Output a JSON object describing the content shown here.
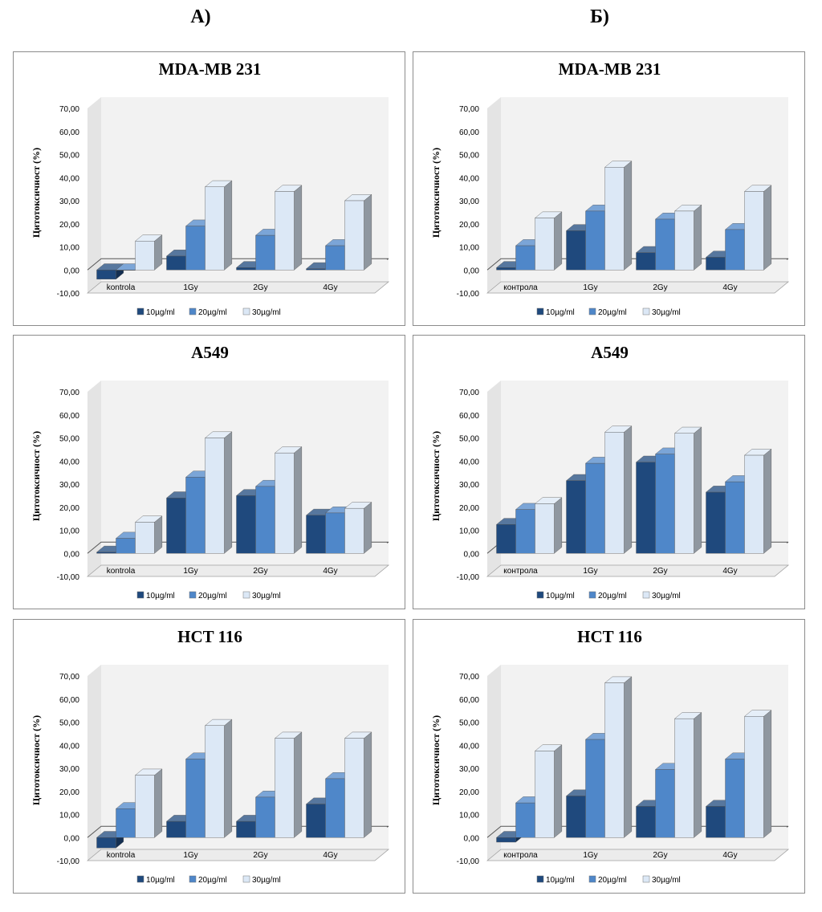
{
  "headings": {
    "left": "А)",
    "right": "Б)"
  },
  "colors": {
    "s10": "#1f497d",
    "s20": "#4f87c9",
    "s30": "#dce8f6",
    "wall": "#f2f2f2",
    "grid": "#555555",
    "edge": "#8a8a8a"
  },
  "chart_data": [
    {
      "type": "bar",
      "title": "MDA-MB 231",
      "ylabel": "Цитотоксичност (%)",
      "xlabel": "",
      "ylim": [
        -10,
        70
      ],
      "yticks": [
        "-10,00",
        "0,00",
        "10,00",
        "20,00",
        "30,00",
        "40,00",
        "50,00",
        "60,00",
        "70,00"
      ],
      "categories": [
        "kontrola",
        "1Gy",
        "2Gy",
        "4Gy"
      ],
      "series": [
        {
          "name": "10µg/ml",
          "values": [
            -4,
            6,
            1,
            0.5
          ]
        },
        {
          "name": "20µg/ml",
          "values": [
            0,
            19,
            15,
            10.5
          ]
        },
        {
          "name": "30µg/ml",
          "values": [
            12.5,
            36,
            34,
            30
          ]
        }
      ],
      "legend": "bottom"
    },
    {
      "type": "bar",
      "title": "MDA-MB 231",
      "ylabel": "Цитотоксичност (%)",
      "xlabel": "",
      "ylim": [
        -10,
        70
      ],
      "yticks": [
        "-10,00",
        "0,00",
        "10,00",
        "20,00",
        "30,00",
        "40,00",
        "50,00",
        "60,00",
        "70,00"
      ],
      "categories": [
        "контрола",
        "1Gy",
        "2Gy",
        "4Gy"
      ],
      "series": [
        {
          "name": "10µg/ml",
          "values": [
            1,
            17,
            7.5,
            5.5
          ]
        },
        {
          "name": "20µg/ml",
          "values": [
            10.5,
            25.5,
            22,
            17.5
          ]
        },
        {
          "name": "30µg/ml",
          "values": [
            22.5,
            44.5,
            25.5,
            34
          ]
        }
      ],
      "legend": "bottom"
    },
    {
      "type": "bar",
      "title": "A549",
      "ylabel": "Цитотоксичност (%)",
      "xlabel": "",
      "ylim": [
        -10,
        70
      ],
      "yticks": [
        "-10,00",
        "0,00",
        "10,00",
        "20,00",
        "30,00",
        "40,00",
        "50,00",
        "60,00",
        "70,00"
      ],
      "categories": [
        "kontrola",
        "1Gy",
        "2Gy",
        "4Gy"
      ],
      "series": [
        {
          "name": "10µg/ml",
          "values": [
            0.5,
            24,
            25,
            16.5
          ]
        },
        {
          "name": "20µg/ml",
          "values": [
            6.5,
            33,
            29,
            17.5
          ]
        },
        {
          "name": "30µg/ml",
          "values": [
            13.5,
            50,
            43.5,
            19.5
          ]
        }
      ],
      "legend": "bottom"
    },
    {
      "type": "bar",
      "title": "A549",
      "ylabel": "Цитотоксичност (%)",
      "xlabel": "",
      "ylim": [
        -10,
        70
      ],
      "yticks": [
        "-10,00",
        "0,00",
        "10,00",
        "20,00",
        "30,00",
        "40,00",
        "50,00",
        "60,00",
        "70,00"
      ],
      "categories": [
        "контрола",
        "1Gy",
        "2Gy",
        "4Gy"
      ],
      "series": [
        {
          "name": "10µg/ml",
          "values": [
            12.5,
            31.5,
            39.5,
            26.5
          ]
        },
        {
          "name": "20µg/ml",
          "values": [
            19,
            39,
            43,
            31
          ]
        },
        {
          "name": "30µg/ml",
          "values": [
            21.5,
            52.5,
            52,
            42.5
          ]
        }
      ],
      "legend": "bottom"
    },
    {
      "type": "bar",
      "title": "HCT 116",
      "ylabel": "Цитотоксичност (%)",
      "xlabel": "",
      "ylim": [
        -10,
        70
      ],
      "yticks": [
        "-10,00",
        "0,00",
        "10,00",
        "20,00",
        "30,00",
        "40,00",
        "50,00",
        "60,00",
        "70,00"
      ],
      "categories": [
        "kontrola",
        "1Gy",
        "2Gy",
        "4Gy"
      ],
      "series": [
        {
          "name": "10µg/ml",
          "values": [
            -4.5,
            7,
            7,
            14.5
          ]
        },
        {
          "name": "20µg/ml",
          "values": [
            12.5,
            34,
            17.5,
            25.5
          ]
        },
        {
          "name": "30µg/ml",
          "values": [
            27,
            48.5,
            43,
            43
          ]
        }
      ],
      "legend": "bottom"
    },
    {
      "type": "bar",
      "title": "HCT 116",
      "ylabel": "Цитотоксичност (%)",
      "xlabel": "",
      "ylim": [
        -10,
        70
      ],
      "yticks": [
        "-10,00",
        "0,00",
        "10,00",
        "20,00",
        "30,00",
        "40,00",
        "50,00",
        "60,00",
        "70,00"
      ],
      "categories": [
        "контрола",
        "1Gy",
        "2Gy",
        "4Gy"
      ],
      "series": [
        {
          "name": "10µg/ml",
          "values": [
            -2,
            18,
            13.5,
            13.5
          ]
        },
        {
          "name": "20µg/ml",
          "values": [
            15,
            42.5,
            29.5,
            34
          ]
        },
        {
          "name": "30µg/ml",
          "values": [
            37.5,
            67,
            51.5,
            52.5
          ]
        }
      ],
      "legend": "bottom"
    }
  ]
}
